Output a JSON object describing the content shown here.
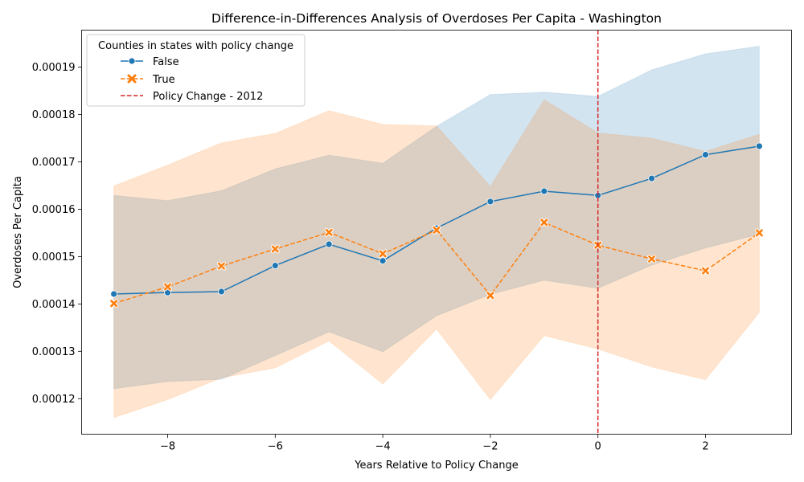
{
  "chart_data": {
    "type": "line",
    "title": "Difference-in-Differences Analysis of Overdoses Per Capita - Washington",
    "xlabel": "Years Relative to Policy Change",
    "ylabel": "Overdoses Per Capita",
    "xlim": [
      -9.6,
      3.6
    ],
    "ylim": [
      0.0001125,
      0.0001978
    ],
    "xticks": [
      -8,
      -6,
      -4,
      -2,
      0,
      2
    ],
    "yticks": [
      0.00012,
      0.00013,
      0.00014,
      0.00015,
      0.00016,
      0.00017,
      0.00018,
      0.00019
    ],
    "ytick_labels": [
      "0.00012",
      "0.00013",
      "0.00014",
      "0.00015",
      "0.00016",
      "0.00017",
      "0.00018",
      "0.00019"
    ],
    "legend_title": "Counties in states with policy change",
    "legend_position": "top-left",
    "x": [
      -9,
      -8,
      -7,
      -6,
      -5,
      -4,
      -3,
      -2,
      -1,
      0,
      1,
      2,
      3
    ],
    "series": [
      {
        "name": "False",
        "color": "#1f77b4",
        "marker": "circle",
        "linestyle": "solid",
        "values": [
          0.0001421,
          0.0001424,
          0.0001426,
          0.0001481,
          0.0001526,
          0.0001491,
          0.000156,
          0.0001616,
          0.0001638,
          0.0001629,
          0.0001665,
          0.0001715,
          0.0001733
        ],
        "ci_lower": [
          0.0001221,
          0.0001236,
          0.0001241,
          0.0001291,
          0.0001341,
          0.0001299,
          0.0001375,
          0.000142,
          0.000145,
          0.0001433,
          0.0001482,
          0.0001518,
          0.0001547
        ],
        "ci_upper": [
          0.0001629,
          0.0001618,
          0.0001639,
          0.0001685,
          0.0001714,
          0.0001697,
          0.0001775,
          0.0001842,
          0.0001847,
          0.0001838,
          0.0001894,
          0.0001928,
          0.0001944
        ]
      },
      {
        "name": "True",
        "color": "#ff7f0e",
        "marker": "x",
        "linestyle": "dashed",
        "values": [
          0.0001401,
          0.0001436,
          0.000148,
          0.0001516,
          0.0001551,
          0.0001506,
          0.0001556,
          0.0001418,
          0.0001572,
          0.0001524,
          0.0001495,
          0.000147,
          0.000155
        ],
        "ci_lower": [
          0.000116,
          0.0001198,
          0.0001244,
          0.0001265,
          0.0001322,
          0.0001231,
          0.0001347,
          0.0001198,
          0.0001333,
          0.0001305,
          0.0001267,
          0.000124,
          0.0001382
        ],
        "ci_upper": [
          0.0001649,
          0.0001693,
          0.000174,
          0.000176,
          0.0001808,
          0.0001779,
          0.0001776,
          0.0001648,
          0.0001831,
          0.0001761,
          0.000175,
          0.0001722,
          0.0001758
        ]
      }
    ],
    "vline": {
      "x": 0,
      "label": "Policy Change - 2012",
      "color": "#d62728",
      "linestyle": "dashed"
    }
  }
}
